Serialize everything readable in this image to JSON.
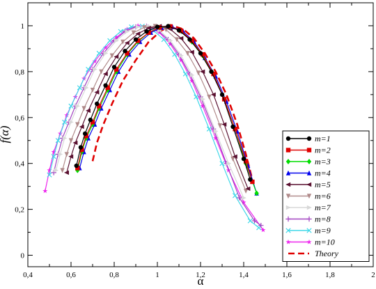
{
  "chart_data": {
    "type": "line",
    "xlabel": "α",
    "ylabel": "f(α)",
    "xlim": [
      0.4,
      2.0
    ],
    "ylim": [
      -0.05,
      1.1
    ],
    "x_ticks": [
      "0,4",
      "0,6",
      "0,8",
      "1",
      "1,2",
      "1,4",
      "1,6",
      "1,8",
      "2"
    ],
    "x_tick_values": [
      0.4,
      0.6,
      0.8,
      1.0,
      1.2,
      1.4,
      1.6,
      1.8,
      2.0
    ],
    "y_ticks": [
      "0",
      "0,2",
      "0,4",
      "0,6",
      "0,8",
      "1"
    ],
    "y_tick_values": [
      0,
      0.2,
      0.4,
      0.6,
      0.8,
      1.0
    ],
    "grid": false,
    "legend_position": "right",
    "series": [
      {
        "name": "m=1",
        "color": "#000000",
        "marker": "circle",
        "points": [
          [
            0.625,
            0.39
          ],
          [
            0.645,
            0.47
          ],
          [
            0.665,
            0.53
          ],
          [
            0.69,
            0.59
          ],
          [
            0.72,
            0.66
          ],
          [
            0.76,
            0.74
          ],
          [
            0.8,
            0.82
          ],
          [
            0.85,
            0.89
          ],
          [
            0.9,
            0.94
          ],
          [
            0.95,
            0.975
          ],
          [
            1.0,
            0.995
          ],
          [
            1.05,
            0.998
          ],
          [
            1.1,
            0.98
          ],
          [
            1.15,
            0.94
          ],
          [
            1.2,
            0.88
          ],
          [
            1.25,
            0.8
          ],
          [
            1.3,
            0.7
          ],
          [
            1.35,
            0.56
          ],
          [
            1.4,
            0.42
          ],
          [
            1.43,
            0.33
          ]
        ]
      },
      {
        "name": "m=2",
        "color": "#e00000",
        "marker": "square",
        "points": [
          [
            0.63,
            0.38
          ],
          [
            0.65,
            0.46
          ],
          [
            0.67,
            0.52
          ],
          [
            0.7,
            0.58
          ],
          [
            0.73,
            0.65
          ],
          [
            0.77,
            0.73
          ],
          [
            0.81,
            0.81
          ],
          [
            0.86,
            0.88
          ],
          [
            0.91,
            0.935
          ],
          [
            0.96,
            0.97
          ],
          [
            1.01,
            0.993
          ],
          [
            1.06,
            0.997
          ],
          [
            1.11,
            0.978
          ],
          [
            1.16,
            0.935
          ],
          [
            1.21,
            0.875
          ],
          [
            1.26,
            0.79
          ],
          [
            1.31,
            0.68
          ],
          [
            1.36,
            0.55
          ],
          [
            1.41,
            0.41
          ],
          [
            1.44,
            0.32
          ]
        ]
      },
      {
        "name": "m=3",
        "color": "#00dd00",
        "marker": "diamond",
        "points": [
          [
            0.63,
            0.37
          ],
          [
            0.65,
            0.45
          ],
          [
            0.67,
            0.51
          ],
          [
            0.7,
            0.57
          ],
          [
            0.73,
            0.64
          ],
          [
            0.77,
            0.72
          ],
          [
            0.81,
            0.8
          ],
          [
            0.86,
            0.875
          ],
          [
            0.91,
            0.93
          ],
          [
            0.96,
            0.97
          ],
          [
            1.01,
            0.992
          ],
          [
            1.06,
            0.996
          ],
          [
            1.11,
            0.977
          ],
          [
            1.16,
            0.93
          ],
          [
            1.21,
            0.87
          ],
          [
            1.26,
            0.79
          ],
          [
            1.31,
            0.68
          ],
          [
            1.36,
            0.55
          ],
          [
            1.41,
            0.4
          ],
          [
            1.46,
            0.27
          ]
        ]
      },
      {
        "name": "m=4",
        "color": "#0000ee",
        "marker": "triangle-up",
        "points": [
          [
            0.64,
            0.38
          ],
          [
            0.66,
            0.45
          ],
          [
            0.68,
            0.51
          ],
          [
            0.71,
            0.57
          ],
          [
            0.74,
            0.64
          ],
          [
            0.78,
            0.72
          ],
          [
            0.82,
            0.8
          ],
          [
            0.87,
            0.875
          ],
          [
            0.92,
            0.93
          ],
          [
            0.97,
            0.97
          ],
          [
            1.02,
            0.992
          ],
          [
            1.07,
            0.995
          ],
          [
            1.12,
            0.975
          ],
          [
            1.17,
            0.93
          ],
          [
            1.22,
            0.86
          ],
          [
            1.27,
            0.78
          ],
          [
            1.32,
            0.67
          ],
          [
            1.37,
            0.54
          ],
          [
            1.42,
            0.39
          ],
          [
            1.46,
            0.27
          ]
        ]
      },
      {
        "name": "m=5",
        "color": "#5a1030",
        "marker": "triangle-left",
        "points": [
          [
            0.58,
            0.36
          ],
          [
            0.6,
            0.43
          ],
          [
            0.62,
            0.49
          ],
          [
            0.65,
            0.56
          ],
          [
            0.68,
            0.63
          ],
          [
            0.72,
            0.71
          ],
          [
            0.76,
            0.79
          ],
          [
            0.81,
            0.865
          ],
          [
            0.86,
            0.925
          ],
          [
            0.91,
            0.965
          ],
          [
            0.96,
            0.99
          ],
          [
            1.01,
            0.998
          ],
          [
            1.06,
            0.985
          ],
          [
            1.11,
            0.945
          ],
          [
            1.16,
            0.885
          ],
          [
            1.21,
            0.8
          ],
          [
            1.26,
            0.7
          ],
          [
            1.31,
            0.57
          ],
          [
            1.36,
            0.43
          ],
          [
            1.42,
            0.29
          ]
        ]
      },
      {
        "name": "m=6",
        "color": "#b08a8a",
        "marker": "triangle-down",
        "points": [
          [
            0.56,
            0.37
          ],
          [
            0.58,
            0.44
          ],
          [
            0.6,
            0.5
          ],
          [
            0.63,
            0.57
          ],
          [
            0.66,
            0.64
          ],
          [
            0.7,
            0.72
          ],
          [
            0.74,
            0.8
          ],
          [
            0.79,
            0.87
          ],
          [
            0.84,
            0.93
          ],
          [
            0.89,
            0.97
          ],
          [
            0.94,
            0.993
          ],
          [
            0.99,
            0.998
          ],
          [
            1.04,
            0.983
          ],
          [
            1.09,
            0.94
          ],
          [
            1.14,
            0.88
          ],
          [
            1.19,
            0.795
          ],
          [
            1.24,
            0.69
          ],
          [
            1.29,
            0.565
          ],
          [
            1.35,
            0.42
          ],
          [
            1.41,
            0.28
          ]
        ]
      },
      {
        "name": "m=7",
        "color": "#d8d8d8",
        "marker": "triangle-right",
        "points": [
          [
            0.53,
            0.37
          ],
          [
            0.55,
            0.44
          ],
          [
            0.57,
            0.51
          ],
          [
            0.6,
            0.58
          ],
          [
            0.63,
            0.65
          ],
          [
            0.67,
            0.73
          ],
          [
            0.71,
            0.81
          ],
          [
            0.76,
            0.88
          ],
          [
            0.81,
            0.935
          ],
          [
            0.86,
            0.975
          ],
          [
            0.91,
            0.995
          ],
          [
            0.96,
            0.998
          ],
          [
            1.01,
            0.98
          ],
          [
            1.06,
            0.935
          ],
          [
            1.11,
            0.87
          ],
          [
            1.16,
            0.785
          ],
          [
            1.21,
            0.68
          ],
          [
            1.27,
            0.54
          ],
          [
            1.33,
            0.4
          ],
          [
            1.4,
            0.25
          ]
        ]
      },
      {
        "name": "m=8",
        "color": "#a040c0",
        "marker": "plus",
        "points": [
          [
            0.52,
            0.36
          ],
          [
            0.54,
            0.44
          ],
          [
            0.56,
            0.51
          ],
          [
            0.59,
            0.58
          ],
          [
            0.62,
            0.65
          ],
          [
            0.66,
            0.73
          ],
          [
            0.7,
            0.81
          ],
          [
            0.75,
            0.88
          ],
          [
            0.8,
            0.935
          ],
          [
            0.85,
            0.975
          ],
          [
            0.9,
            0.995
          ],
          [
            0.95,
            0.998
          ],
          [
            1.0,
            0.98
          ],
          [
            1.05,
            0.94
          ],
          [
            1.1,
            0.875
          ],
          [
            1.15,
            0.79
          ],
          [
            1.2,
            0.69
          ],
          [
            1.26,
            0.55
          ],
          [
            1.32,
            0.4
          ],
          [
            1.38,
            0.25
          ],
          [
            1.45,
            0.15
          ],
          [
            1.48,
            0.13
          ]
        ]
      },
      {
        "name": "m=9",
        "color": "#40d8e8",
        "marker": "x",
        "points": [
          [
            0.5,
            0.35
          ],
          [
            0.52,
            0.43
          ],
          [
            0.54,
            0.5
          ],
          [
            0.57,
            0.58
          ],
          [
            0.6,
            0.65
          ],
          [
            0.64,
            0.73
          ],
          [
            0.68,
            0.81
          ],
          [
            0.73,
            0.88
          ],
          [
            0.78,
            0.935
          ],
          [
            0.83,
            0.975
          ],
          [
            0.88,
            0.995
          ],
          [
            0.93,
            0.998
          ],
          [
            0.98,
            0.98
          ],
          [
            1.03,
            0.94
          ],
          [
            1.08,
            0.875
          ],
          [
            1.13,
            0.79
          ],
          [
            1.18,
            0.69
          ],
          [
            1.24,
            0.55
          ],
          [
            1.3,
            0.4
          ],
          [
            1.36,
            0.26
          ],
          [
            1.43,
            0.15
          ],
          [
            1.47,
            0.12
          ]
        ]
      },
      {
        "name": "m=10",
        "color": "#ee22ee",
        "marker": "star",
        "points": [
          [
            0.48,
            0.28
          ],
          [
            0.5,
            0.37
          ],
          [
            0.52,
            0.45
          ],
          [
            0.55,
            0.53
          ],
          [
            0.58,
            0.61
          ],
          [
            0.62,
            0.69
          ],
          [
            0.66,
            0.77
          ],
          [
            0.71,
            0.845
          ],
          [
            0.76,
            0.905
          ],
          [
            0.81,
            0.95
          ],
          [
            0.86,
            0.985
          ],
          [
            0.91,
            1.0
          ],
          [
            0.96,
            0.995
          ],
          [
            1.01,
            0.97
          ],
          [
            1.06,
            0.92
          ],
          [
            1.11,
            0.85
          ],
          [
            1.16,
            0.76
          ],
          [
            1.21,
            0.65
          ],
          [
            1.27,
            0.51
          ],
          [
            1.33,
            0.37
          ],
          [
            1.4,
            0.23
          ],
          [
            1.49,
            0.11
          ]
        ]
      },
      {
        "name": "Theory",
        "color": "#e00000",
        "marker": "none",
        "dashed": true,
        "points": [
          [
            0.7,
            0.41
          ],
          [
            0.72,
            0.49
          ],
          [
            0.75,
            0.57
          ],
          [
            0.79,
            0.66
          ],
          [
            0.84,
            0.76
          ],
          [
            0.9,
            0.85
          ],
          [
            0.96,
            0.93
          ],
          [
            1.02,
            0.98
          ],
          [
            1.07,
            1.0
          ],
          [
            1.12,
            0.985
          ],
          [
            1.17,
            0.945
          ],
          [
            1.22,
            0.88
          ],
          [
            1.27,
            0.8
          ],
          [
            1.32,
            0.7
          ],
          [
            1.37,
            0.57
          ],
          [
            1.41,
            0.44
          ],
          [
            1.44,
            0.33
          ]
        ]
      }
    ]
  }
}
